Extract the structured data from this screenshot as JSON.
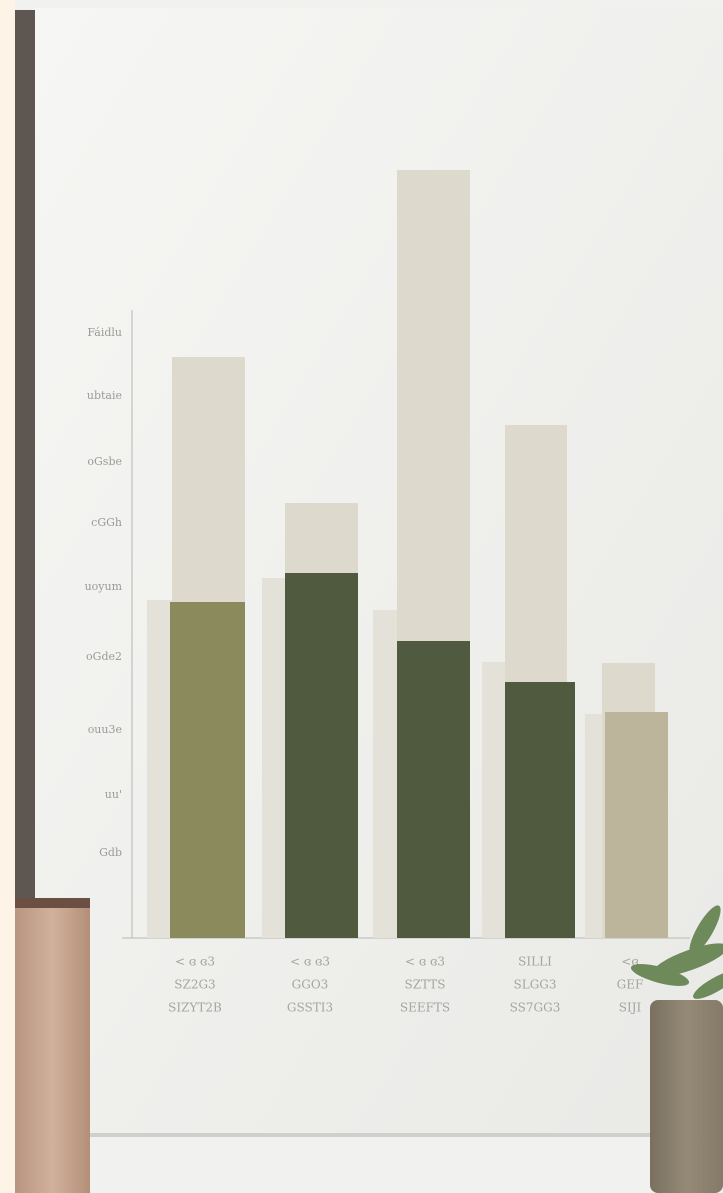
{
  "scene": {
    "y_axis_labels": [
      "Fáidlu",
      "ubtaie",
      "oGsbe",
      "cGGh",
      "uoyum",
      "oGde2",
      "ouu3e",
      "uu'",
      "Gdb"
    ],
    "x_labels": [
      [
        "< ɞ ɞ3",
        "SZ2G3",
        "SIZYT2B"
      ],
      [
        "< ɞ ɞ3",
        "GGO3",
        "GSSTI3"
      ],
      [
        "< ɞ ɞ3",
        "SZTTS",
        "SEEFTS"
      ],
      [
        "SILLI",
        "SLGG3",
        "SS7GG3"
      ],
      [
        "<ɞ",
        "GEF",
        "SIJI"
      ]
    ]
  }
}
